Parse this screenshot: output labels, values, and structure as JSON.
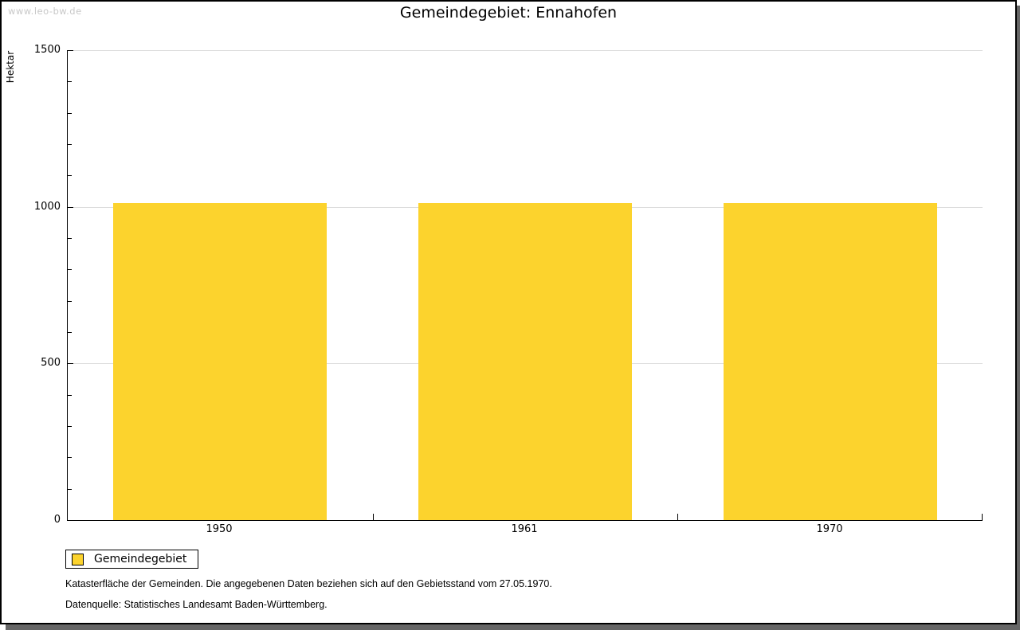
{
  "watermark": "www.leo-bw.de",
  "title": "Gemeindegebiet: Ennahofen",
  "colors": {
    "bar": "#FCD32D",
    "grid": "#dcdcdc",
    "axis": "#000000",
    "shadow": "#666666",
    "watermark": "#c8c8c8"
  },
  "chart_data": {
    "type": "bar",
    "categories": [
      "1950",
      "1961",
      "1970"
    ],
    "series": [
      {
        "name": "Gemeindegebiet",
        "values": [
          1013,
          1013,
          1013
        ]
      }
    ],
    "title": "Gemeindegebiet: Ennahofen",
    "xlabel": "",
    "ylabel": "Hektar",
    "ylim": [
      0,
      1500
    ],
    "yticks": [
      0,
      500,
      1000,
      1500
    ],
    "minor_tick_step": 100,
    "grid": true,
    "legend_position": "bottom-left"
  },
  "legend": {
    "items": [
      {
        "label": "Gemeindegebiet",
        "color": "#FCD32D"
      }
    ]
  },
  "footer": {
    "line1": "Katasterfläche der Gemeinden. Die angegebenen Daten beziehen sich auf den Gebietsstand vom 27.05.1970.",
    "line2": "Datenquelle: Statistisches Landesamt Baden-Württemberg."
  }
}
